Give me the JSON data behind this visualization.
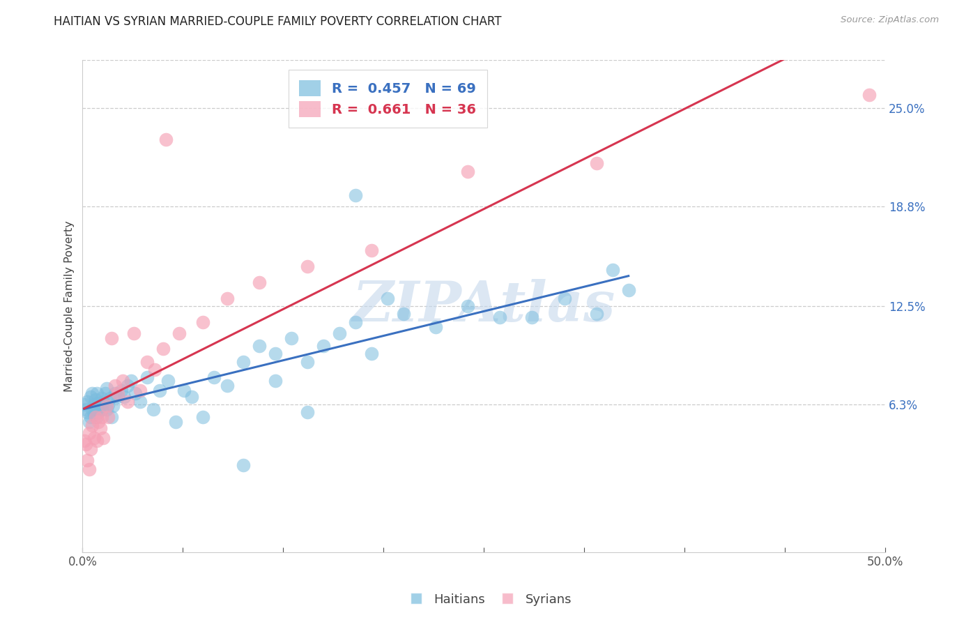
{
  "title": "HAITIAN VS SYRIAN MARRIED-COUPLE FAMILY POVERTY CORRELATION CHART",
  "source": "Source: ZipAtlas.com",
  "ylabel": "Married-Couple Family Poverty",
  "xlim": [
    0.0,
    0.5
  ],
  "ylim": [
    -0.03,
    0.28
  ],
  "xtick_positions": [
    0.0,
    0.0625,
    0.125,
    0.1875,
    0.25,
    0.3125,
    0.375,
    0.4375,
    0.5
  ],
  "xtick_labels": [
    "0.0%",
    "",
    "",
    "",
    "",
    "",
    "",
    "",
    "50.0%"
  ],
  "ytick_values_right": [
    0.063,
    0.125,
    0.188,
    0.25
  ],
  "ytick_labels_right": [
    "6.3%",
    "12.5%",
    "18.8%",
    "25.0%"
  ],
  "haitians_R": "0.457",
  "haitians_N": "69",
  "syrians_R": "0.661",
  "syrians_N": "36",
  "haitian_color": "#7abcde",
  "syrian_color": "#f5a0b5",
  "haitian_line_color": "#3a70c0",
  "syrian_line_color": "#d63550",
  "watermark": "ZIPAtlas",
  "haitian_x": [
    0.001,
    0.002,
    0.003,
    0.003,
    0.004,
    0.005,
    0.005,
    0.006,
    0.006,
    0.007,
    0.007,
    0.008,
    0.008,
    0.009,
    0.009,
    0.01,
    0.01,
    0.011,
    0.012,
    0.012,
    0.013,
    0.014,
    0.015,
    0.015,
    0.016,
    0.017,
    0.018,
    0.019,
    0.02,
    0.022,
    0.024,
    0.026,
    0.028,
    0.03,
    0.033,
    0.036,
    0.04,
    0.044,
    0.048,
    0.053,
    0.058,
    0.063,
    0.068,
    0.075,
    0.082,
    0.09,
    0.1,
    0.11,
    0.12,
    0.13,
    0.14,
    0.15,
    0.16,
    0.17,
    0.18,
    0.2,
    0.22,
    0.24,
    0.26,
    0.28,
    0.3,
    0.32,
    0.34,
    0.17,
    0.19,
    0.1,
    0.12,
    0.14,
    0.33
  ],
  "haitian_y": [
    0.063,
    0.06,
    0.058,
    0.065,
    0.052,
    0.068,
    0.055,
    0.06,
    0.07,
    0.057,
    0.063,
    0.06,
    0.066,
    0.055,
    0.07,
    0.058,
    0.064,
    0.062,
    0.06,
    0.067,
    0.065,
    0.07,
    0.06,
    0.073,
    0.063,
    0.067,
    0.055,
    0.062,
    0.07,
    0.068,
    0.072,
    0.068,
    0.075,
    0.078,
    0.07,
    0.065,
    0.08,
    0.06,
    0.072,
    0.078,
    0.052,
    0.072,
    0.068,
    0.055,
    0.08,
    0.075,
    0.09,
    0.1,
    0.095,
    0.105,
    0.09,
    0.1,
    0.108,
    0.115,
    0.095,
    0.12,
    0.112,
    0.125,
    0.118,
    0.118,
    0.13,
    0.12,
    0.135,
    0.195,
    0.13,
    0.025,
    0.078,
    0.058,
    0.148
  ],
  "syrian_x": [
    0.001,
    0.002,
    0.003,
    0.004,
    0.004,
    0.005,
    0.006,
    0.007,
    0.008,
    0.009,
    0.01,
    0.011,
    0.012,
    0.013,
    0.015,
    0.016,
    0.018,
    0.02,
    0.022,
    0.025,
    0.028,
    0.032,
    0.036,
    0.04,
    0.045,
    0.05,
    0.06,
    0.075,
    0.09,
    0.11,
    0.14,
    0.18,
    0.24,
    0.32,
    0.49,
    0.052
  ],
  "syrian_y": [
    0.04,
    0.038,
    0.028,
    0.022,
    0.045,
    0.035,
    0.05,
    0.042,
    0.055,
    0.04,
    0.052,
    0.048,
    0.055,
    0.042,
    0.062,
    0.055,
    0.105,
    0.075,
    0.07,
    0.078,
    0.065,
    0.108,
    0.072,
    0.09,
    0.085,
    0.098,
    0.108,
    0.115,
    0.13,
    0.14,
    0.15,
    0.16,
    0.21,
    0.215,
    0.258,
    0.23
  ]
}
